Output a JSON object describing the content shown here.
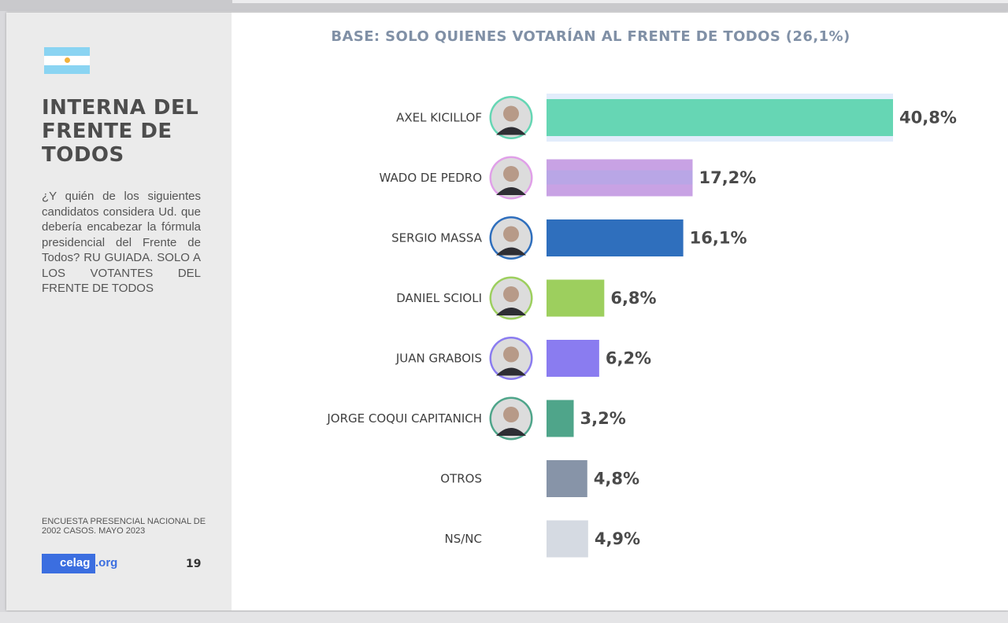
{
  "sidebar": {
    "title": "INTERNA DEL FRENTE DE TODOS",
    "question": "¿Y quién de los siguientes candidatos considera Ud. que debería encabezar la fórmula presidencial del Frente de Todos? RU GUIADA. SOLO A LOS VOTANTES DEL FRENTE DE TODOS",
    "footnote": "ENCUESTA PRESENCIAL NACIONAL DE 2002 CASOS. MAYO 2023",
    "logo_main": "celag",
    "logo_suffix": ".org",
    "page_number": "19",
    "flag_icon": "argentina-flag-icon"
  },
  "chart_data": {
    "type": "bar",
    "orientation": "horizontal",
    "title": "BASE: SOLO QUIENES VOTARÍAN AL FRENTE DE TODOS (26,1%)",
    "categories": [
      "AXEL KICILLOF",
      "WADO DE PEDRO",
      "SERGIO MASSA",
      "DANIEL SCIOLI",
      "JUAN GRABOIS",
      "JORGE COQUI CAPITANICH",
      "OTROS",
      "NS/NC"
    ],
    "values": [
      40.8,
      17.2,
      16.1,
      6.8,
      6.2,
      3.2,
      4.8,
      4.9
    ],
    "value_labels": [
      "40,8%",
      "17,2%",
      "16,1%",
      "6,8%",
      "6,2%",
      "3,2%",
      "4,8%",
      "4,9%"
    ],
    "colors": [
      "#66d6b4",
      "#c8a2e4",
      "#2f6fbd",
      "#9dcf5e",
      "#8a7cf0",
      "#4fa58a",
      "#8794a8",
      "#d5dae2"
    ],
    "photos": [
      true,
      true,
      true,
      true,
      true,
      true,
      false,
      false
    ],
    "photo_ring_colors": [
      "#66d6b4",
      "#e0a0e8",
      "#2f6fbd",
      "#9dcf5e",
      "#8a7cf0",
      "#4fa58a"
    ],
    "xlim": [
      0,
      40.8
    ],
    "grid": false,
    "legend": "none"
  }
}
